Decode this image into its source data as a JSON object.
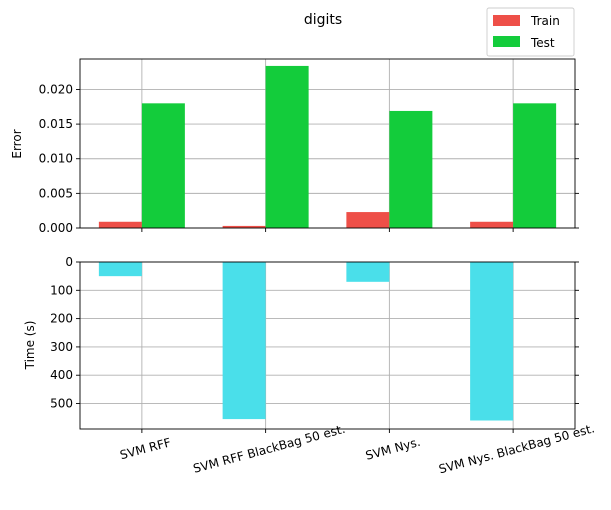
{
  "chart_data": {
    "title": "digits",
    "type": "bar",
    "categories": [
      "SVM RFF",
      "SVM RFF BlackBag 50 est.",
      "SVM Nys.",
      "SVM Nys. BlackBag 50 est."
    ],
    "error_panel": {
      "ylabel": "Error",
      "ylim": [
        0,
        0.0244
      ],
      "yticks": [
        0.0,
        0.005,
        0.01,
        0.015,
        0.02
      ],
      "ytick_labels": [
        "0.000",
        "0.005",
        "0.010",
        "0.015",
        "0.020"
      ],
      "series": [
        {
          "name": "Train",
          "color": "#ee4f48",
          "values": [
            0.0009,
            0.0003,
            0.0023,
            0.0009
          ]
        },
        {
          "name": "Test",
          "color": "#13cc3b",
          "values": [
            0.018,
            0.0234,
            0.0169,
            0.018
          ]
        }
      ],
      "grid": true,
      "legend_position": "top-right"
    },
    "time_panel": {
      "ylabel": "Time (s)",
      "ylim": [
        0,
        590
      ],
      "inverted": true,
      "yticks": [
        0,
        100,
        200,
        300,
        400,
        500
      ],
      "ytick_labels": [
        "0",
        "100",
        "200",
        "300",
        "400",
        "500"
      ],
      "series": [
        {
          "color": "#4adfea",
          "values": [
            50,
            555,
            70,
            560
          ]
        }
      ],
      "grid": true
    }
  }
}
